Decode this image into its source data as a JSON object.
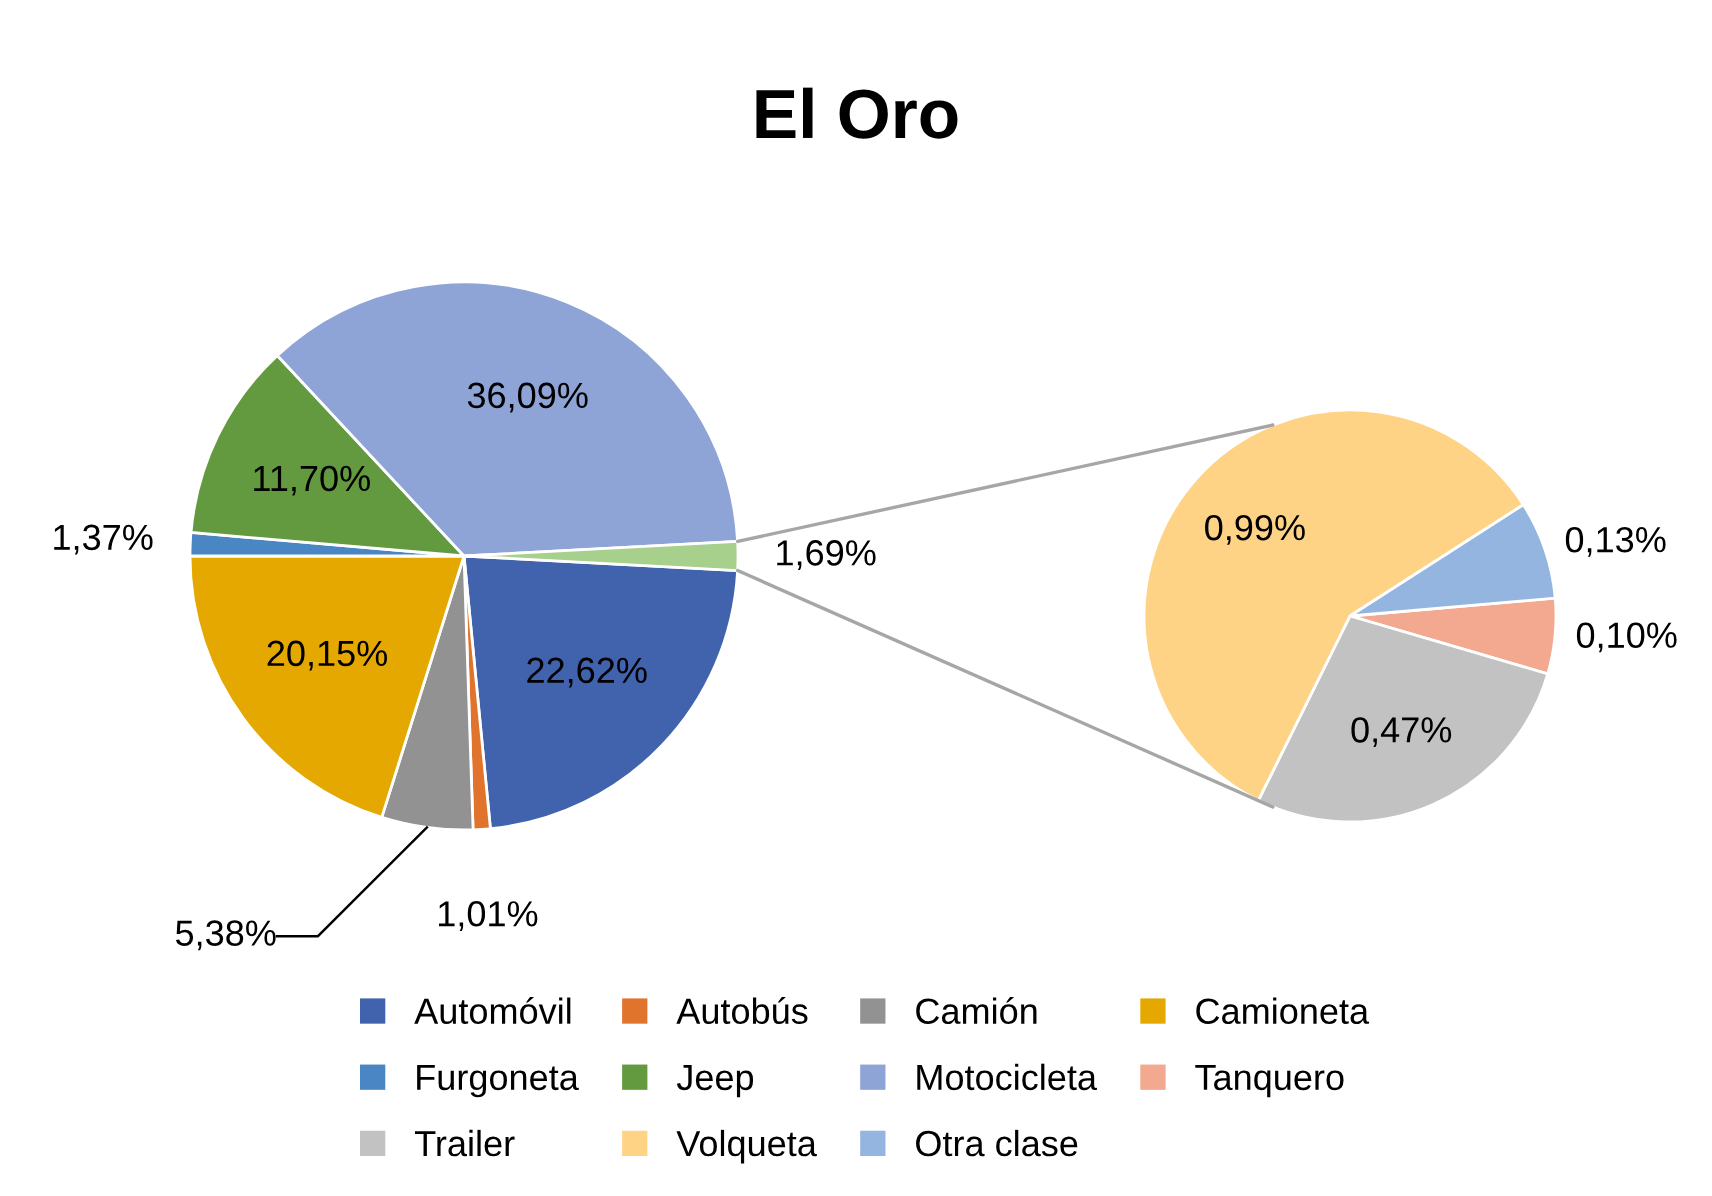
{
  "chart_data": [
    {
      "type": "pie",
      "title": "El Oro",
      "legend": "bottom",
      "categories": [
        "Automóvil",
        "Autobús",
        "Camión",
        "Camioneta",
        "Furgoneta",
        "Jeep",
        "Motocicleta",
        null
      ],
      "values": [
        22.62,
        1.01,
        5.38,
        20.15,
        1.37,
        11.7,
        36.09,
        1.69
      ],
      "value_labels": [
        "22,62%",
        "1,01%",
        "5,38%",
        "20,15%",
        "1,37%",
        "11,70%",
        "36,09%",
        "1,69%"
      ],
      "colors": [
        "#4163ad",
        "#e0742c",
        "#929292",
        "#e5a800",
        "#4a86c3",
        "#63993f",
        "#8fa4d6",
        "#a8d08d"
      ]
    },
    {
      "type": "pie",
      "legend": "bottom",
      "categories": [
        "Tanquero",
        "Trailer",
        "Volqueta",
        "Otra clase"
      ],
      "values": [
        0.1,
        0.47,
        0.99,
        0.13
      ],
      "value_labels": [
        "0,10%",
        "0,47%",
        "0,99%",
        "0,13%"
      ],
      "colors": [
        "#f3a98f",
        "#c2c2c2",
        "#ffd386",
        "#93b5e0"
      ]
    }
  ]
}
